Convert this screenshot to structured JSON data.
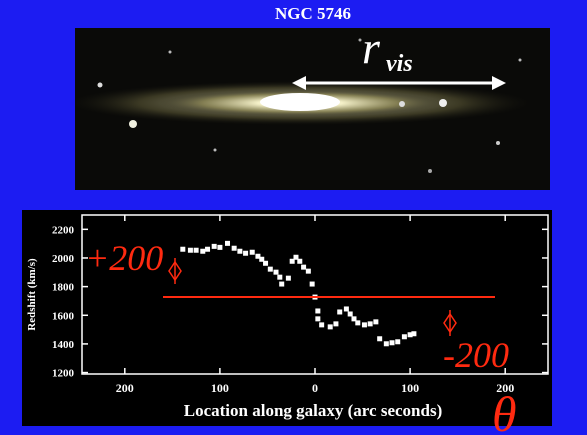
{
  "title": "NGC 5746",
  "image_label": {
    "symbol": "r",
    "subscript": "vis"
  },
  "chart_data": {
    "type": "scatter",
    "ylabel": "Redshift (km/s)",
    "xlabel": "Location along galaxy (arc seconds)",
    "xlim": [
      245,
      -245
    ],
    "ylim": [
      1190,
      2300
    ],
    "xticks": [
      200,
      100,
      0,
      {
        "value": -100,
        "label": "100"
      },
      {
        "value": -200,
        "label": "200"
      }
    ],
    "yticks": [
      1200,
      1400,
      1600,
      1800,
      2000,
      2200
    ],
    "color": "#ffffff",
    "x": [
      139,
      131,
      125,
      118,
      113,
      106,
      100,
      92,
      85,
      79,
      73,
      66,
      60,
      56,
      52,
      47,
      41,
      37,
      35,
      28,
      24,
      20,
      16,
      12,
      7,
      3,
      0,
      -3,
      -3,
      -7,
      -16,
      -22,
      -26,
      -33,
      -37,
      -41,
      -45,
      -52,
      -58,
      -64,
      -68,
      -75,
      -81,
      -87,
      -94,
      -100,
      -104
    ],
    "values": [
      2061,
      2054,
      2054,
      2047,
      2061,
      2081,
      2074,
      2102,
      2068,
      2047,
      2033,
      2040,
      2012,
      1991,
      1963,
      1922,
      1901,
      1866,
      1818,
      1859,
      1977,
      2005,
      1977,
      1936,
      1908,
      1818,
      1727,
      1630,
      1575,
      1533,
      1519,
      1540,
      1623,
      1644,
      1609,
      1575,
      1547,
      1533,
      1540,
      1554,
      1436,
      1401,
      1408,
      1415,
      1450,
      1464,
      1471
    ],
    "annotations": [
      "+200",
      "-200",
      "θ"
    ]
  }
}
